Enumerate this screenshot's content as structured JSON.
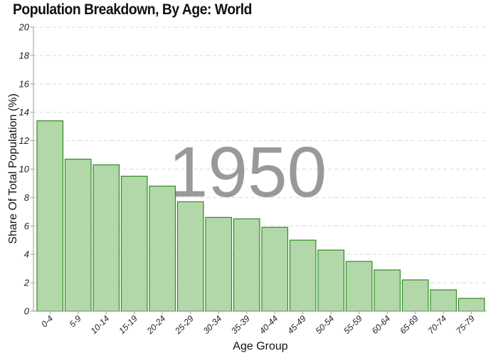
{
  "chart_data": {
    "type": "bar",
    "title": "Population Breakdown, By Age: World",
    "xlabel": "Age Group",
    "ylabel": "Share Of Total Population (%)",
    "annotation": "1950",
    "ylim": [
      0,
      20
    ],
    "yticks": [
      0,
      2,
      4,
      6,
      8,
      10,
      12,
      14,
      16,
      18,
      20
    ],
    "grid": true,
    "categories": [
      "0-4",
      "5-9",
      "10-14",
      "15-19",
      "20-24",
      "25-29",
      "30-34",
      "35-39",
      "40-44",
      "45-49",
      "50-54",
      "55-59",
      "60-64",
      "65-69",
      "70-74",
      "75-79"
    ],
    "values": [
      13.4,
      10.7,
      10.3,
      9.5,
      8.8,
      7.7,
      6.6,
      6.5,
      5.9,
      5.0,
      4.3,
      3.5,
      2.9,
      2.2,
      1.5,
      0.9
    ],
    "colors": {
      "bar_fill": "#b2d8a9",
      "bar_stroke": "#2e8b22"
    }
  }
}
